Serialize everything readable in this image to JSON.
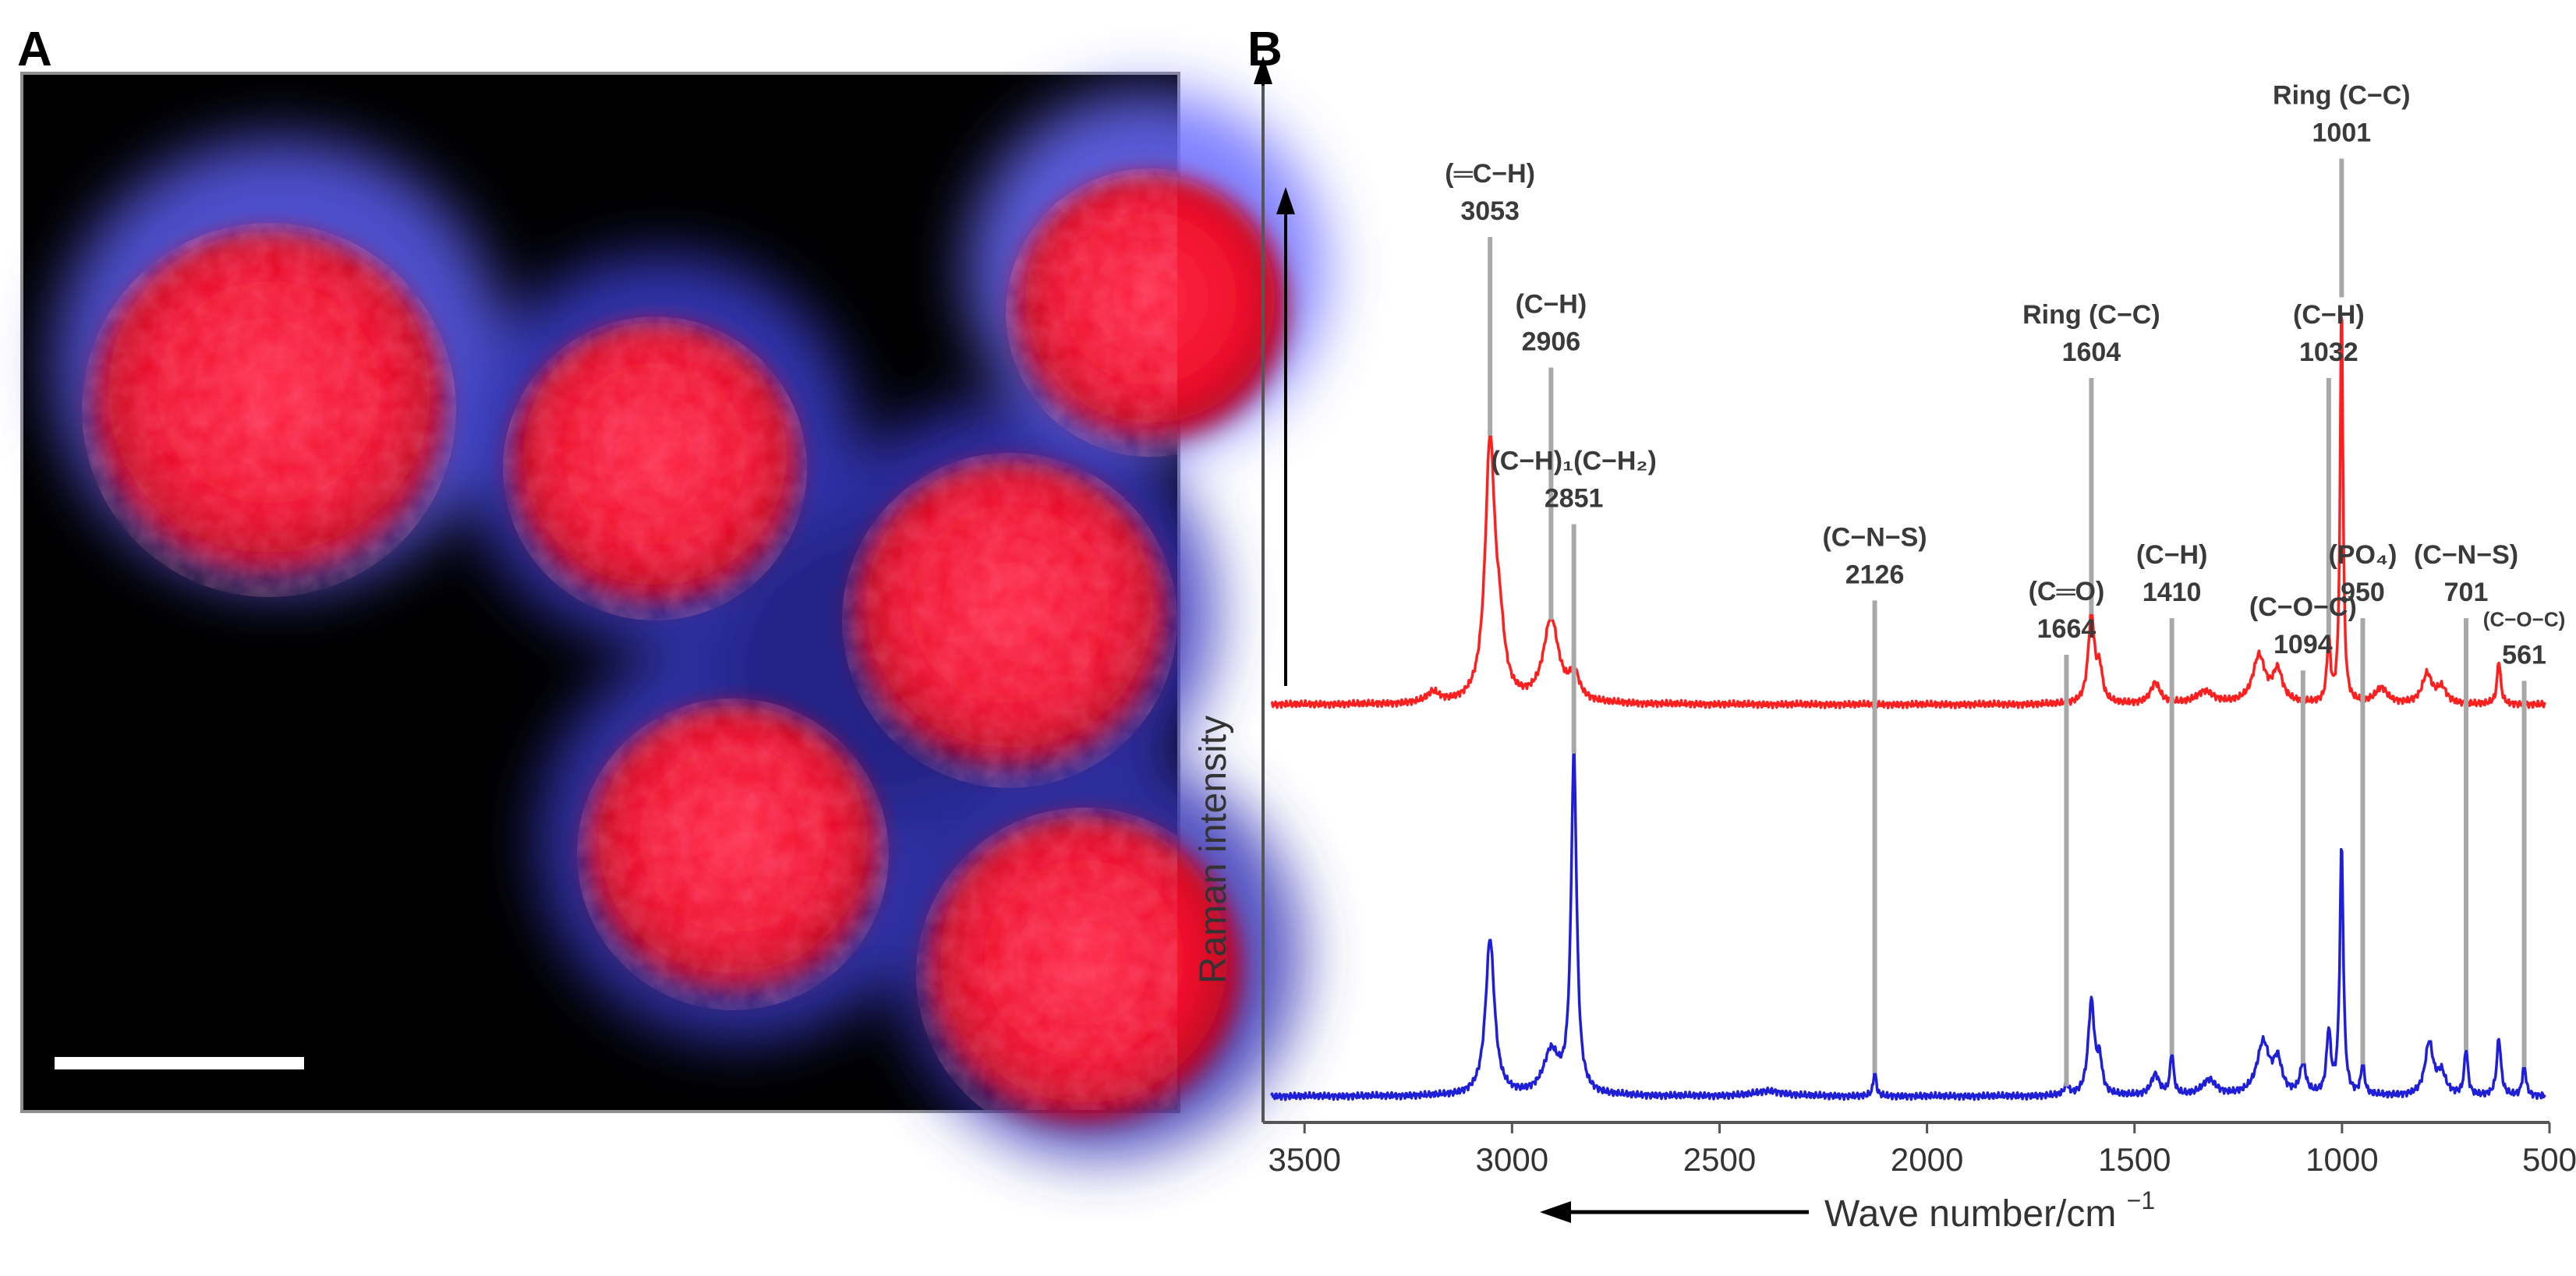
{
  "panels": {
    "a_label": "A",
    "b_label": "B"
  },
  "micrograph": {
    "background_color": "#000000",
    "particle_color": "#ff1a3c",
    "halo_color": "#6a6cff",
    "scale_bar_color": "#ffffff"
  },
  "chart_data": {
    "type": "line",
    "ylabel": "Raman intensity",
    "xlabel": "Wave number/cm",
    "xlabel_superscript": "−1",
    "x_reversed": true,
    "xlim": [
      3600,
      500
    ],
    "xticks": [
      3500,
      3000,
      2500,
      2000,
      1500,
      1000,
      500
    ],
    "grid": false,
    "series": [
      {
        "color": "#ff1f1f",
        "baseline": 0.6,
        "peaks": [
          {
            "x": 3053,
            "h": 0.245,
            "w": 14
          },
          {
            "x": 3030,
            "h": 0.05,
            "w": 14
          },
          {
            "x": 2906,
            "h": 0.08,
            "w": 22
          },
          {
            "x": 2850,
            "h": 0.025,
            "w": 14
          },
          {
            "x": 3190,
            "h": 0.01,
            "w": 18
          },
          {
            "x": 1604,
            "h": 0.085,
            "w": 9
          },
          {
            "x": 1584,
            "h": 0.03,
            "w": 8
          },
          {
            "x": 1450,
            "h": 0.02,
            "w": 14
          },
          {
            "x": 1330,
            "h": 0.012,
            "w": 25
          },
          {
            "x": 1200,
            "h": 0.045,
            "w": 18
          },
          {
            "x": 1155,
            "h": 0.03,
            "w": 14
          },
          {
            "x": 1032,
            "h": 0.06,
            "w": 5
          },
          {
            "x": 1001,
            "h": 0.39,
            "w": 4
          },
          {
            "x": 905,
            "h": 0.015,
            "w": 18
          },
          {
            "x": 795,
            "h": 0.028,
            "w": 14
          },
          {
            "x": 760,
            "h": 0.015,
            "w": 14
          },
          {
            "x": 622,
            "h": 0.042,
            "w": 5
          }
        ],
        "annotations": [
          {
            "x": 3053,
            "label": "(═C−H)",
            "value": "3053",
            "top": 0.1
          },
          {
            "x": 2906,
            "label": "(C−H)",
            "value": "2906",
            "top": 0.225
          },
          {
            "x": 1604,
            "label": "Ring (C−C)",
            "value": "1604",
            "top": 0.235
          },
          {
            "x": 1032,
            "label": "(C−H)",
            "value": "1032",
            "top": 0.235
          },
          {
            "x": 1001,
            "label": "Ring (C−C)",
            "value": "1001",
            "top": 0.025
          }
        ]
      },
      {
        "color": "#1f1fd8",
        "baseline": 0.975,
        "peaks": [
          {
            "x": 3053,
            "h": 0.15,
            "w": 13
          },
          {
            "x": 2906,
            "h": 0.04,
            "w": 22
          },
          {
            "x": 2851,
            "h": 0.325,
            "w": 8
          },
          {
            "x": 2380,
            "h": 0.005,
            "w": 40
          },
          {
            "x": 2126,
            "h": 0.025,
            "w": 4
          },
          {
            "x": 1664,
            "h": 0.01,
            "w": 6
          },
          {
            "x": 1604,
            "h": 0.09,
            "w": 9
          },
          {
            "x": 1584,
            "h": 0.03,
            "w": 7
          },
          {
            "x": 1450,
            "h": 0.02,
            "w": 12
          },
          {
            "x": 1410,
            "h": 0.04,
            "w": 5
          },
          {
            "x": 1320,
            "h": 0.015,
            "w": 20
          },
          {
            "x": 1190,
            "h": 0.05,
            "w": 18
          },
          {
            "x": 1155,
            "h": 0.03,
            "w": 12
          },
          {
            "x": 1094,
            "h": 0.03,
            "w": 8
          },
          {
            "x": 1032,
            "h": 0.06,
            "w": 6
          },
          {
            "x": 1001,
            "h": 0.24,
            "w": 5
          },
          {
            "x": 950,
            "h": 0.03,
            "w": 5
          },
          {
            "x": 790,
            "h": 0.05,
            "w": 12
          },
          {
            "x": 760,
            "h": 0.02,
            "w": 12
          },
          {
            "x": 701,
            "h": 0.045,
            "w": 5
          },
          {
            "x": 622,
            "h": 0.055,
            "w": 6
          },
          {
            "x": 561,
            "h": 0.03,
            "w": 5
          }
        ],
        "annotations": [
          {
            "x": 2851,
            "label": "(C−H)₁(C−H₂)",
            "value": "2851",
            "top": 0.375
          },
          {
            "x": 2126,
            "label": "(C−N−S)",
            "value": "2126",
            "top": 0.448
          },
          {
            "x": 1664,
            "label": "(C═O)",
            "value": "1664",
            "top": 0.5
          },
          {
            "x": 1410,
            "label": "(C−H)",
            "value": "1410",
            "top": 0.465
          },
          {
            "x": 1094,
            "label": "(C−O−C)",
            "value": "1094",
            "top": 0.515
          },
          {
            "x": 950,
            "label": "(PO₄)",
            "value": "950",
            "top": 0.465
          },
          {
            "x": 701,
            "label": "(C−N−S)",
            "value": "701",
            "top": 0.465
          },
          {
            "x": 561,
            "label": "(C−O−C)",
            "value": "561",
            "top": 0.525,
            "small": true
          }
        ]
      }
    ]
  }
}
